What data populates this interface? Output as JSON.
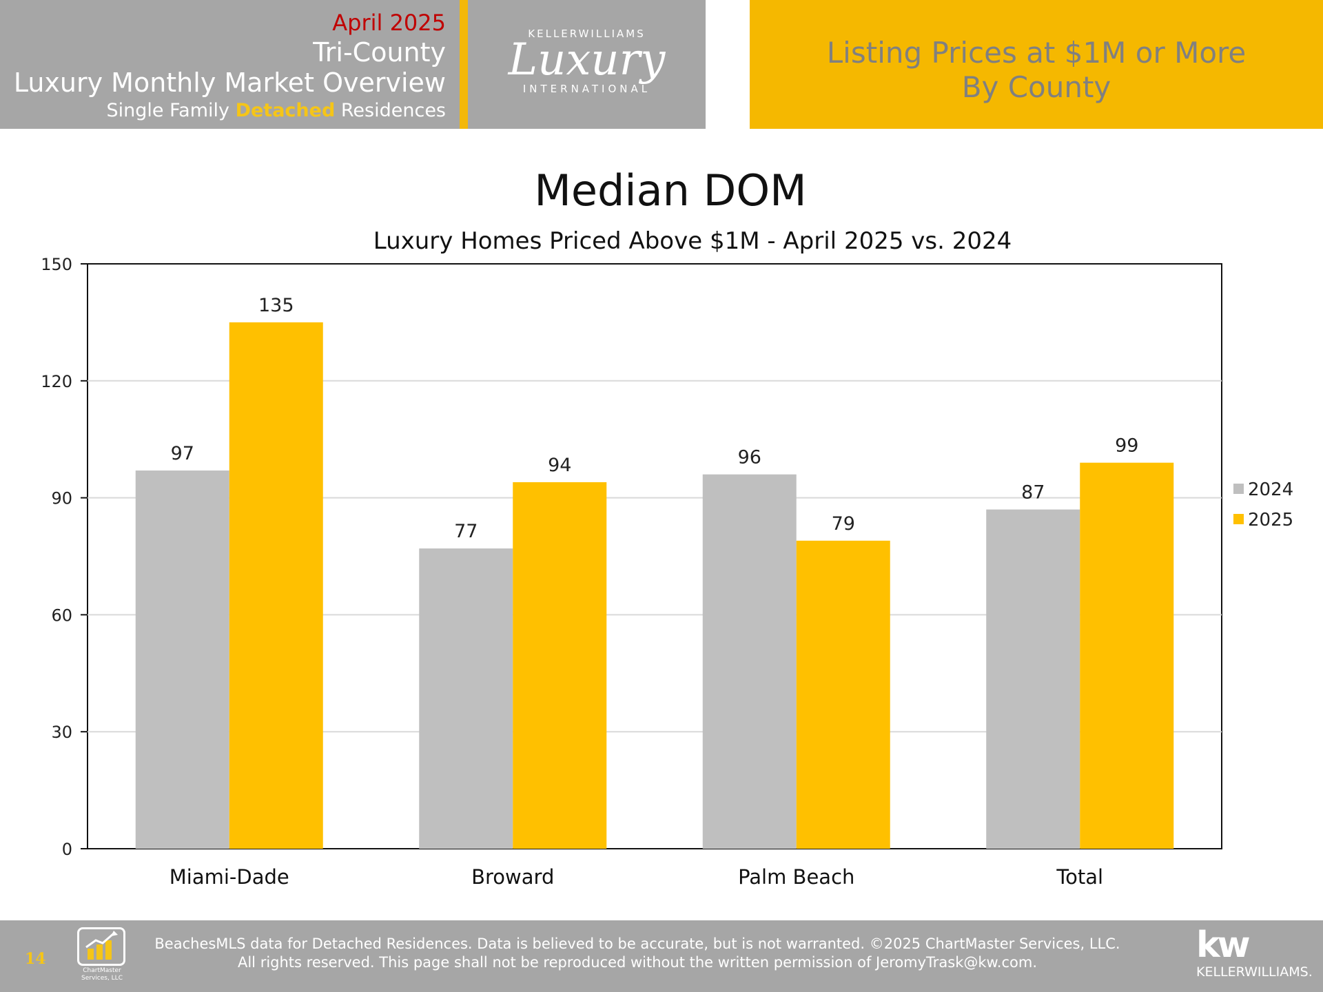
{
  "header": {
    "date": "April 2025",
    "region": "Tri-County",
    "title": "Luxury Monthly Market Overview",
    "subtitle_pre": "Single Family ",
    "subtitle_highlight": "Detached",
    "subtitle_post": " Residences",
    "logo_top": "KELLERWILLIAMS",
    "logo_script": "Luxury",
    "logo_bottom": "INTERNATIONAL",
    "right_line1": "Listing Prices at $1M or More",
    "right_line2": "By County"
  },
  "chart_data": {
    "type": "bar",
    "title": "Median DOM",
    "subtitle": "Luxury Homes Priced Above $1M - April 2025 vs. 2024",
    "categories": [
      "Miami-Dade",
      "Broward",
      "Palm Beach",
      "Total"
    ],
    "series": [
      {
        "name": "2024",
        "values": [
          97,
          77,
          96,
          87
        ],
        "color": "#bfbfbf"
      },
      {
        "name": "2025",
        "values": [
          135,
          94,
          79,
          99
        ],
        "color": "#ffc000"
      }
    ],
    "ylim": [
      0,
      150
    ],
    "yticks": [
      0,
      30,
      60,
      90,
      120,
      150
    ],
    "grid": true,
    "legend": "right"
  },
  "footer": {
    "page_number": "14",
    "line1": "BeachesMLS data for Detached Residences.  Data is believed to be accurate, but is not warranted.   ©2025  ChartMaster Services, LLC.",
    "line2": "All rights reserved. This page shall not be reproduced without the written permission of JeromyTrask@kw.com.",
    "cm_logo_text": "ChartMaster Services, LLC",
    "kw_mark": "kw",
    "kw_name": "KELLERWILLIAMS."
  }
}
